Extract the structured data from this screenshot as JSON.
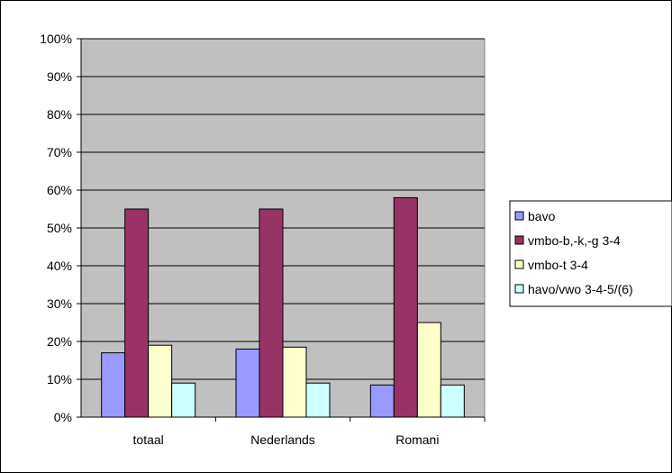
{
  "chart_data": {
    "type": "bar",
    "categories": [
      "totaal",
      "Nederlands",
      "Romani"
    ],
    "series": [
      {
        "name": "bavo",
        "color": "#9999ff",
        "values": [
          17,
          18,
          8.5
        ]
      },
      {
        "name": "vmbo-b,-k,-g 3-4",
        "color": "#993366",
        "values": [
          55,
          55,
          58
        ]
      },
      {
        "name": "vmbo-t 3-4",
        "color": "#ffffcc",
        "values": [
          19,
          18.5,
          25
        ]
      },
      {
        "name": "havo/vwo 3-4-5/(6)",
        "color": "#ccffff",
        "values": [
          9,
          9,
          8.5
        ]
      }
    ],
    "ylim": [
      0,
      100
    ],
    "yticks": [
      "0%",
      "10%",
      "20%",
      "30%",
      "40%",
      "50%",
      "60%",
      "70%",
      "80%",
      "90%",
      "100%"
    ],
    "plot_background": "#c0c0c0",
    "grid": true,
    "legend": "right"
  }
}
